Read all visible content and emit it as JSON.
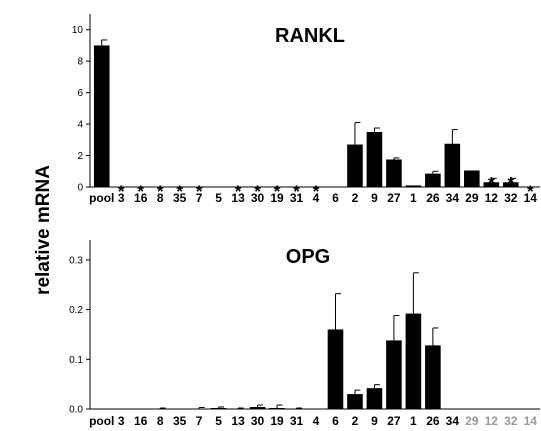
{
  "ylabel": "relative mRNA",
  "chart_data": [
    {
      "type": "bar",
      "title": "RANKL",
      "ylim": [
        0,
        11
      ],
      "yticks": [
        "0",
        "2",
        "4",
        "6",
        "8",
        "10"
      ],
      "categories": [
        "pool",
        "3",
        "16",
        "8",
        "35",
        "7",
        "5",
        "13",
        "30",
        "19",
        "31",
        "4",
        "6",
        "2",
        "9",
        "27",
        "1",
        "26",
        "34",
        "29",
        "12",
        "32",
        "14"
      ],
      "values": [
        9.0,
        0,
        0,
        0,
        0,
        0,
        0,
        0,
        0,
        0,
        0,
        0,
        0,
        2.7,
        3.5,
        1.75,
        0.1,
        0.85,
        2.75,
        1.05,
        0.3,
        0.3,
        0
      ],
      "errors": [
        0.35,
        0,
        0,
        0,
        0,
        0,
        0,
        0,
        0,
        0,
        0,
        0,
        0,
        1.4,
        0.25,
        0.1,
        0,
        0.15,
        0.9,
        0,
        0.25,
        0.25,
        0
      ],
      "annotations": [
        "",
        "*",
        "*",
        "*",
        "*",
        "*",
        "",
        "*",
        "*",
        "*",
        "*",
        "*",
        "",
        "",
        "",
        "",
        "",
        "",
        "",
        "",
        "*",
        "*",
        "*"
      ],
      "label_colors": [
        "#000000",
        "#000000",
        "#000000",
        "#000000",
        "#000000",
        "#000000",
        "#000000",
        "#000000",
        "#000000",
        "#000000",
        "#000000",
        "#000000",
        "#000000",
        "#000000",
        "#000000",
        "#000000",
        "#000000",
        "#000000",
        "#000000",
        "#000000",
        "#000000",
        "#000000",
        "#000000"
      ]
    },
    {
      "type": "bar",
      "title": "OPG",
      "ylim": [
        0,
        0.34
      ],
      "yticks": [
        "0.0",
        "0.1",
        "0.2",
        "0.3"
      ],
      "categories": [
        "pool",
        "3",
        "16",
        "8",
        "35",
        "7",
        "5",
        "13",
        "30",
        "19",
        "31",
        "4",
        "6",
        "2",
        "9",
        "27",
        "1",
        "26",
        "34",
        "29",
        "12",
        "32",
        "14"
      ],
      "values": [
        0,
        0.001,
        0,
        0.001,
        0,
        0.001,
        0.002,
        0.001,
        0.004,
        0.002,
        0.001,
        0,
        0.16,
        0.03,
        0.042,
        0.138,
        0.192,
        0.128,
        0,
        0,
        0,
        0,
        0
      ],
      "errors": [
        0,
        0,
        0,
        0.001,
        0,
        0.002,
        0.002,
        0.001,
        0.004,
        0.006,
        0.001,
        0,
        0.072,
        0.008,
        0.007,
        0.05,
        0.082,
        0.035,
        0,
        0,
        0,
        0,
        0
      ],
      "annotations": [],
      "label_colors": [
        "#000000",
        "#000000",
        "#000000",
        "#000000",
        "#000000",
        "#000000",
        "#000000",
        "#000000",
        "#000000",
        "#000000",
        "#000000",
        "#000000",
        "#000000",
        "#000000",
        "#000000",
        "#000000",
        "#000000",
        "#000000",
        "#000000",
        "#9a9a9a",
        "#9a9a9a",
        "#9a9a9a",
        "#9a9a9a"
      ]
    }
  ]
}
